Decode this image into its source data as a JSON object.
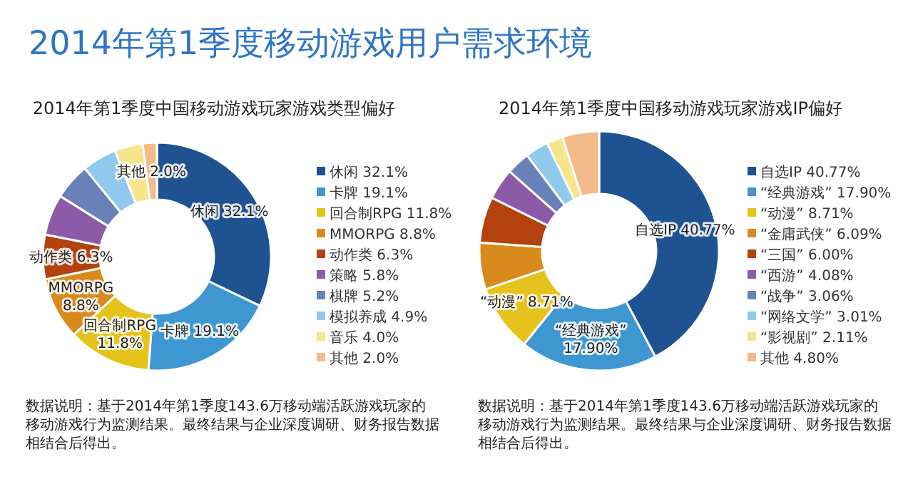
{
  "chart_data": [
    {
      "type": "other",
      "title": "2014年第1季度移动游戏用户需求环境"
    },
    {
      "type": "donut",
      "title": "2014年第1季度中国移动游戏玩家游戏类型偏好",
      "legend": "right",
      "categories": [
        "休闲  32.1%",
        "卡牌  19.1%",
        "回合制RPG  11.8%",
        "MMORPG  8.8%",
        "动作类  6.3%",
        "策略  5.8%",
        "棋牌  5.2%",
        "模拟养成  4.9%",
        "音乐  4.0%",
        "其他  2.0%"
      ],
      "values": [
        32.1,
        19.1,
        11.8,
        8.8,
        6.3,
        5.8,
        5.2,
        4.9,
        4.0,
        2.0
      ],
      "value_labels": [
        "休闲  32.1%",
        "卡牌  19.1%",
        "回合制RPG\n11.8%",
        "MMORPG\n8.8%",
        "动作类  6.3%",
        null,
        null,
        null,
        null,
        "其他  2.0%"
      ],
      "colors": [
        "#1f5291",
        "#3f97d2",
        "#e6c31c",
        "#d88a1c",
        "#b4420f",
        "#8c5aa6",
        "#6a80b8",
        "#8fcaee",
        "#f7e58c",
        "#f3ba8c"
      ],
      "annotations": [
        "数据说明：基于2014年第1季度143.6万移动端活跃游戏玩家的移动游戏行为监测结果。最终结果与企业深度调研、财务报告数据相结合后得出。"
      ]
    },
    {
      "type": "donut",
      "title": "2014年第1季度中国移动游戏玩家游戏IP偏好",
      "legend": "right",
      "categories": [
        "自选IP 40.77%",
        "“经典游戏”  17.90%",
        "“动漫”  8.71%",
        "“金庸武侠”  6.09%",
        "“三国”  6.00%",
        "“西游”  4.08%",
        "“战争”  3.06%",
        "“网络文学”  3.01%",
        "“影视剧”  2.11%",
        "其他 4.80%"
      ],
      "values": [
        40.77,
        17.9,
        8.71,
        6.09,
        6.0,
        4.08,
        3.06,
        3.01,
        2.11,
        4.8
      ],
      "value_labels": [
        "自选IP 40.77%",
        "“经典游戏”\n17.90%",
        "“动漫”  8.71%",
        null,
        null,
        null,
        null,
        null,
        null,
        null
      ],
      "colors": [
        "#1f5291",
        "#3f97d2",
        "#e6c31c",
        "#d88a1c",
        "#b4420f",
        "#8c5aa6",
        "#6a80b8",
        "#8fcaee",
        "#f7e58c",
        "#f3ba8c"
      ],
      "annotations": [
        "数据说明：基于2014年第1季度143.6万移动端活跃游戏玩家的移动游戏行为监测结果。最终结果与企业深度调研、财务报告数据相结合后得出。"
      ]
    }
  ]
}
